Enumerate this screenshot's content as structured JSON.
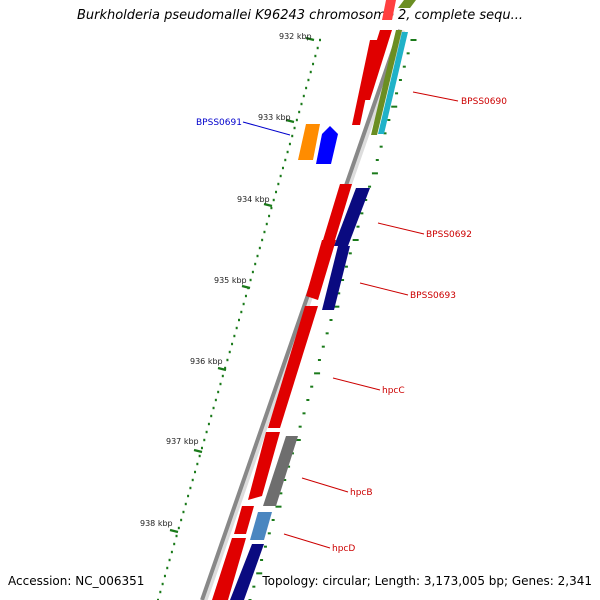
{
  "title": "Burkholderia pseudomallei K96243 chromosome 2, complete sequ...",
  "accession": "Accession: NC_006351",
  "topology": "Topology: circular; Length: 3,173,005 bp; Genes: 2,341",
  "ruler": [
    "932 kbp",
    "933 kbp",
    "934 kbp",
    "935 kbp",
    "936 kbp",
    "937 kbp",
    "938 kbp"
  ],
  "gene_labels": [
    "BPSS0691",
    "BPSS0690",
    "BPSS0692",
    "BPSS0693",
    "hpcC",
    "hpcB",
    "hpcD"
  ],
  "colors": {
    "backbone": "#8a8a8a",
    "cds": "#e00000",
    "label_red": "#cc0000",
    "label_blue": "#0000cc",
    "tick": "#1a7a1a",
    "navy": "#0a0a80",
    "gray": "#6e6e6e",
    "steel": "#4a86c0",
    "olive": "#6b8e23",
    "cyan": "#20b2c8",
    "orange": "#ff8c00",
    "blue": "#0000ff"
  }
}
